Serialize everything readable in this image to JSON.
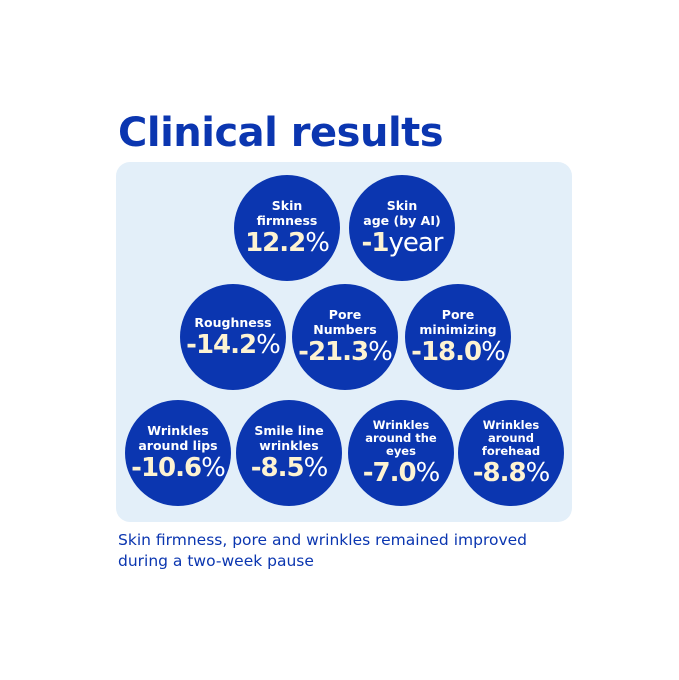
{
  "title": "Clinical results",
  "colors": {
    "primary": "#0b36b0",
    "panel": "#e3eff9",
    "value": "#fdf3d2"
  },
  "results": [
    {
      "label": "Skin\nfirmness",
      "value": "12.2",
      "unit": "%"
    },
    {
      "label": "Skin\nage (by AI)",
      "value": "-1",
      "unit": "year"
    },
    {
      "label": "Roughness",
      "value": "-14.2",
      "unit": "%"
    },
    {
      "label": "Pore\nNumbers",
      "value": "-21.3",
      "unit": "%"
    },
    {
      "label": "Pore\nminimizing",
      "value": "-18.0",
      "unit": "%"
    },
    {
      "label": "Wrinkles\naround lips",
      "value": "-10.6",
      "unit": "%"
    },
    {
      "label": "Smile line\nwrinkles",
      "value": "-8.5",
      "unit": "%"
    },
    {
      "label": "Wrinkles\naround the\neyes",
      "value": "-7.0",
      "unit": "%"
    },
    {
      "label": "Wrinkles\naround\nforehead",
      "value": "-8.8",
      "unit": "%"
    }
  ],
  "footnote": "Skin firmness, pore and wrinkles remained improved during a two-week pause"
}
